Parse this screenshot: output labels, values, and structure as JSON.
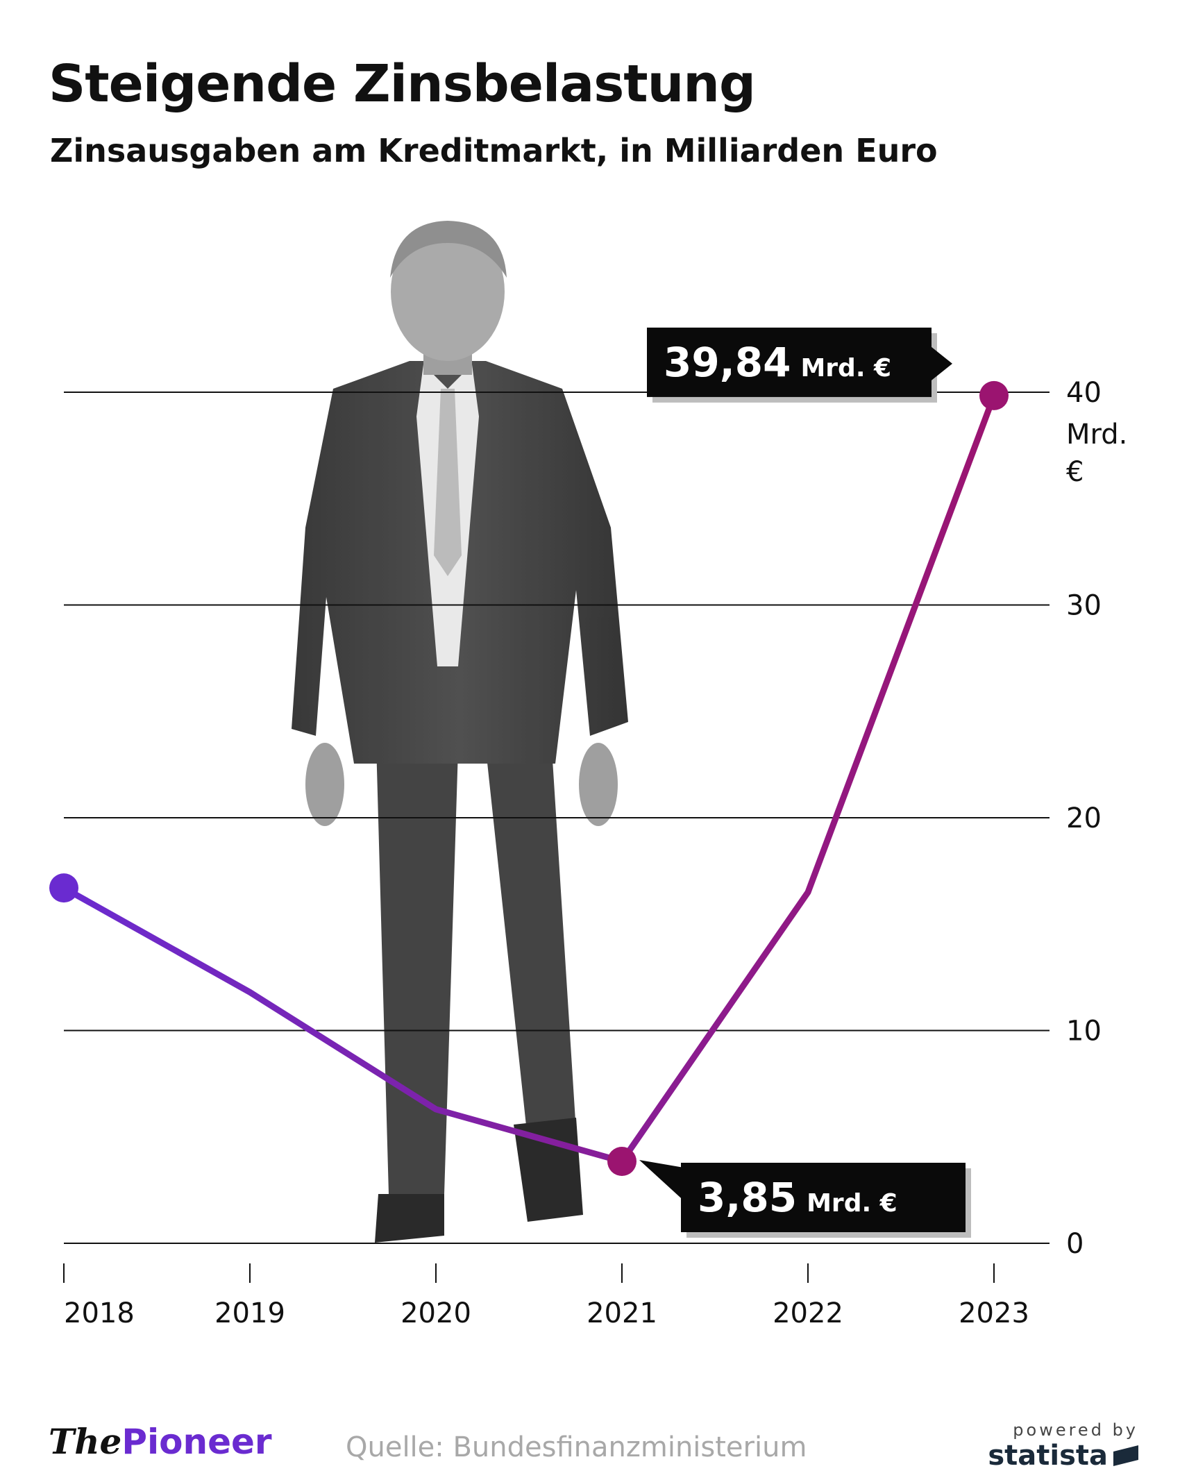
{
  "title": "Steigende Zinsbelastung",
  "subtitle": "Zinsausgaben am Kreditmarkt, in Milliarden Euro",
  "chart_data": {
    "type": "line",
    "x": [
      "2018",
      "2019",
      "2020",
      "2021",
      "2022",
      "2023"
    ],
    "series": [
      {
        "values": [
          16.7,
          11.8,
          6.3,
          3.85,
          16.5,
          39.84
        ]
      }
    ],
    "ylim": [
      0,
      40
    ],
    "yticks": [
      0,
      10,
      20,
      30,
      40
    ],
    "yunit_lines": [
      "Mrd.",
      "€"
    ],
    "grid": true,
    "colors": {
      "start": "#6a2bd0",
      "end": "#9b1470"
    },
    "annotations": [
      {
        "x": "2023",
        "value": "39,84",
        "unit": "Mrd. €"
      },
      {
        "x": "2021",
        "value": "3,85",
        "unit": "Mrd. €"
      }
    ]
  },
  "image": {
    "subject": "man-in-suit-photo"
  },
  "footer": {
    "brand_the": "The",
    "brand_pioneer": "Pioneer",
    "source": "Quelle: Bundesfinanzministerium",
    "powered_by": "powered by",
    "statista": "statista"
  }
}
